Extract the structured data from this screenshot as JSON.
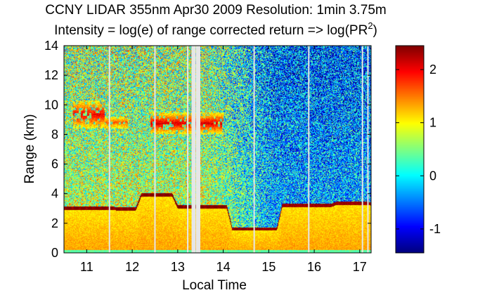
{
  "chart_data": {
    "type": "heatmap",
    "title": "CCNY LIDAR 355nm Apr30 2009 Resolution: 1min 3.75m",
    "subtitle_prefix": "Intensity = log(e) of range corrected return => log(PR",
    "subtitle_superscript": "2",
    "subtitle_suffix": ")",
    "xlabel": "Local Time",
    "ylabel": "Range (km)",
    "xlim": [
      10.5,
      17.25
    ],
    "ylim": [
      0,
      14
    ],
    "xticks": [
      11,
      12,
      13,
      14,
      15,
      16,
      17
    ],
    "xtick_labels": [
      "11",
      "12",
      "13",
      "14",
      "15",
      "16",
      "17"
    ],
    "yticks": [
      0,
      2,
      4,
      6,
      8,
      10,
      12,
      14
    ],
    "ytick_labels": [
      "0",
      "2",
      "4",
      "6",
      "8",
      "10",
      "12",
      "14"
    ],
    "colormap": "jet",
    "color_range": [
      -1.45,
      2.45
    ],
    "colorbar_ticks": [
      -1,
      0,
      1,
      2
    ],
    "colorbar_tick_labels": [
      "-1",
      "0",
      "1",
      "2"
    ],
    "data_gaps_hours": [
      11.5,
      12.5,
      13.22,
      13.35,
      13.45,
      14.68,
      15.88,
      17.06,
      17.18
    ],
    "boundary_layer": [
      {
        "time": 10.5,
        "top_km": 2.9
      },
      {
        "time": 11.7,
        "top_km": 2.85
      },
      {
        "time": 12.2,
        "top_km": 3.8
      },
      {
        "time": 13.0,
        "top_km": 3.0
      },
      {
        "time": 14.2,
        "top_km": 1.5
      },
      {
        "time": 15.0,
        "top_km": 1.5
      },
      {
        "time": 15.3,
        "top_km": 3.1
      },
      {
        "time": 16.5,
        "top_km": 3.25
      },
      {
        "time": 17.25,
        "top_km": 3.2
      }
    ],
    "cloud_layers": [
      {
        "time_start": 10.7,
        "time_end": 11.4,
        "base_km": 8.4,
        "top_km": 10.3,
        "intensity": 2.0
      },
      {
        "time_start": 11.4,
        "time_end": 11.9,
        "base_km": 8.4,
        "top_km": 9.2,
        "intensity": 1.6
      },
      {
        "time_start": 12.4,
        "time_end": 14.0,
        "base_km": 8.0,
        "top_km": 9.5,
        "intensity": 2.1
      }
    ]
  },
  "colors": {
    "background": "#ffffff",
    "gap": "#e6e6e6",
    "axis": "#000000"
  }
}
